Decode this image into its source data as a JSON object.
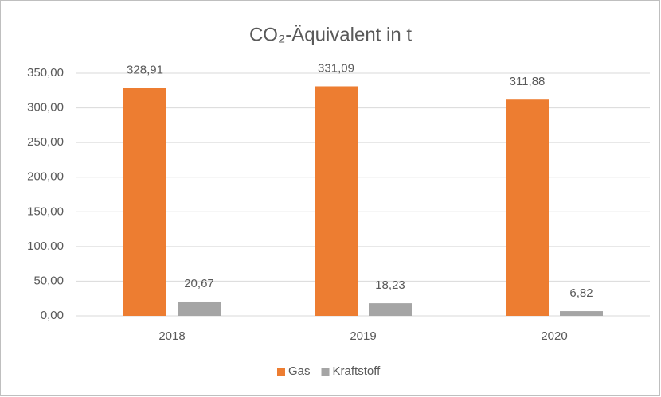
{
  "chart_data": {
    "type": "bar",
    "title": "CO₂-Äquivalent in t",
    "categories": [
      "2018",
      "2019",
      "2020"
    ],
    "series": [
      {
        "name": "Gas",
        "color": "#ed7d31",
        "values": [
          328.91,
          331.09,
          311.88
        ],
        "value_labels": [
          "328,91",
          "331,09",
          "311,88"
        ]
      },
      {
        "name": "Kraftstoff",
        "color": "#a5a5a5",
        "values": [
          20.67,
          18.23,
          6.82
        ],
        "value_labels": [
          "20,67",
          "18,23",
          "6,82"
        ]
      }
    ],
    "ylim": [
      0,
      350
    ],
    "yticks": [
      {
        "value": 0,
        "label": "0,00"
      },
      {
        "value": 50,
        "label": "50,00"
      },
      {
        "value": 100,
        "label": "100,00"
      },
      {
        "value": 150,
        "label": "150,00"
      },
      {
        "value": 200,
        "label": "200,00"
      },
      {
        "value": 250,
        "label": "250,00"
      },
      {
        "value": 300,
        "label": "300,00"
      },
      {
        "value": 350,
        "label": "350,00"
      }
    ],
    "grid": true,
    "legend": "bottom"
  }
}
